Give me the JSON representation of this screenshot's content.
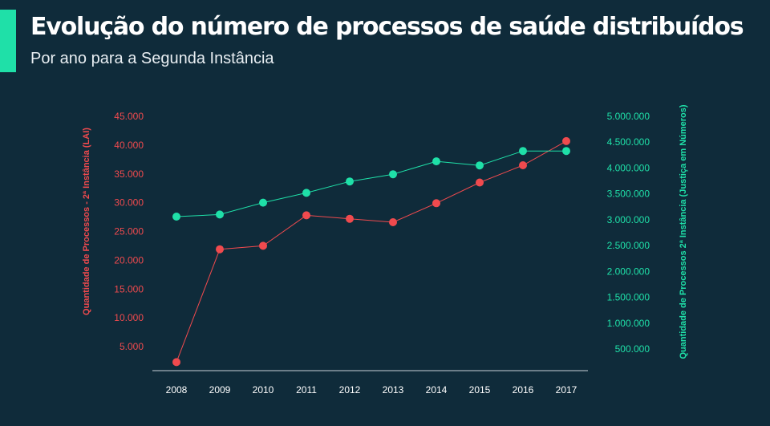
{
  "header": {
    "title": "Evolução do número de processos de saúde distribuídos",
    "subtitle": "Por ano para a Segunda Instância"
  },
  "colors": {
    "background": "#0f2b3a",
    "accent": "#1fe0a8",
    "left_series": "#f04a4e",
    "right_series": "#1fe0a8",
    "axis": "#c8d2d8",
    "text": "#ffffff"
  },
  "chart_data": {
    "type": "line",
    "title": "Evolução do número de processos de saúde distribuídos",
    "subtitle": "Por ano para a Segunda Instância",
    "categories": [
      "2008",
      "2009",
      "2010",
      "2011",
      "2012",
      "2013",
      "2014",
      "2015",
      "2016",
      "2017"
    ],
    "left_axis": {
      "label": "Quantidade de Processos - 2ª Instância (LAI)",
      "ylim": [
        0,
        45000
      ],
      "ticks": [
        5000,
        10000,
        15000,
        20000,
        25000,
        30000,
        35000,
        40000,
        45000
      ],
      "tick_labels": [
        "5.000",
        "10.000",
        "15.000",
        "20.000",
        "25.000",
        "30.000",
        "35.000",
        "40.000",
        "45.000"
      ]
    },
    "right_axis": {
      "label": "Quantidade de Processos 2ª Instância (Justiça em Números)",
      "ylim": [
        0,
        5000000
      ],
      "ticks": [
        500000,
        1000000,
        1500000,
        2000000,
        2500000,
        3000000,
        3500000,
        4000000,
        4500000,
        5000000
      ],
      "tick_labels": [
        "500.000",
        "1.000.000",
        "1.500.000",
        "2.000.000",
        "2.500.000",
        "3.000.000",
        "3.500.000",
        "4.000.000",
        "4.500.000",
        "5.000.000"
      ]
    },
    "series": [
      {
        "axis": "left",
        "color": "#f04a4e",
        "values": [
          2300,
          21900,
          22500,
          27800,
          27200,
          26600,
          29900,
          33500,
          36500,
          40700
        ]
      },
      {
        "axis": "right",
        "color": "#1fe0a8",
        "values": [
          3060000,
          3100000,
          3330000,
          3520000,
          3740000,
          3880000,
          4130000,
          4050000,
          4330000,
          4330000
        ]
      }
    ],
    "grid": false,
    "legend": "none"
  }
}
